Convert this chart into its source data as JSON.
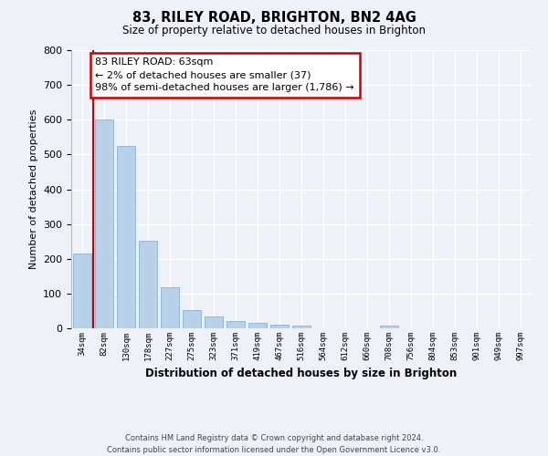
{
  "title": "83, RILEY ROAD, BRIGHTON, BN2 4AG",
  "subtitle": "Size of property relative to detached houses in Brighton",
  "xlabel": "Distribution of detached houses by size in Brighton",
  "ylabel": "Number of detached properties",
  "categories": [
    "34sqm",
    "82sqm",
    "130sqm",
    "178sqm",
    "227sqm",
    "275sqm",
    "323sqm",
    "371sqm",
    "419sqm",
    "467sqm",
    "516sqm",
    "564sqm",
    "612sqm",
    "660sqm",
    "708sqm",
    "756sqm",
    "804sqm",
    "853sqm",
    "901sqm",
    "949sqm",
    "997sqm"
  ],
  "bar_heights": [
    215,
    600,
    525,
    252,
    117,
    52,
    33,
    22,
    15,
    10,
    7,
    0,
    0,
    0,
    7,
    0,
    0,
    0,
    0,
    0,
    0
  ],
  "bar_color": "#b8d0e8",
  "bar_edge_color": "#8ab4d4",
  "ylim": [
    0,
    800
  ],
  "yticks": [
    0,
    100,
    200,
    300,
    400,
    500,
    600,
    700,
    800
  ],
  "property_line_color": "#cc0000",
  "property_line_x": 0.5,
  "annotation_title": "83 RILEY ROAD: 63sqm",
  "annotation_line1": "← 2% of detached houses are smaller (37)",
  "annotation_line2": "98% of semi-detached houses are larger (1,786) →",
  "annotation_box_color": "#cc0000",
  "footer_line1": "Contains HM Land Registry data © Crown copyright and database right 2024.",
  "footer_line2": "Contains public sector information licensed under the Open Government Licence v3.0.",
  "background_color": "#eef2f8",
  "grid_color": "#ffffff"
}
